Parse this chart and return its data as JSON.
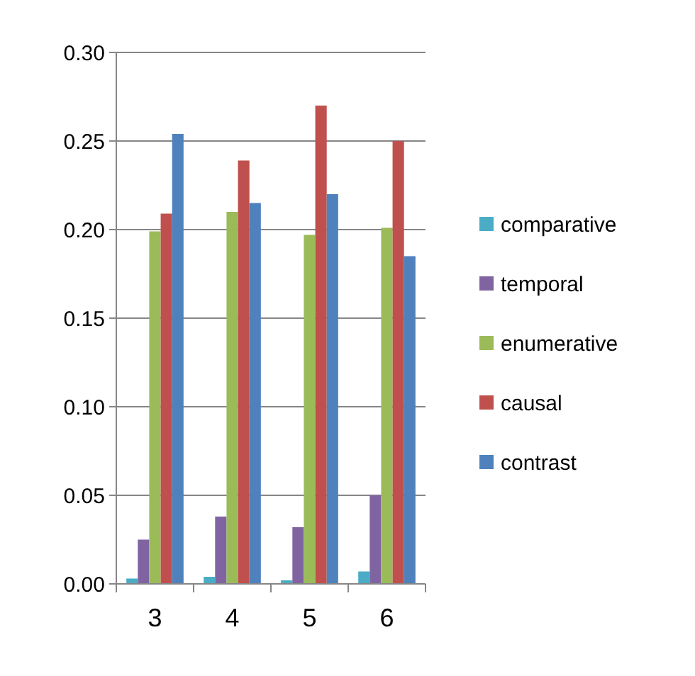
{
  "chart_data": {
    "type": "bar",
    "categories": [
      "3",
      "4",
      "5",
      "6"
    ],
    "series": [
      {
        "name": "comparative",
        "color": "#4bacc6",
        "values": [
          0.003,
          0.004,
          0.002,
          0.007
        ]
      },
      {
        "name": "temporal",
        "color": "#8064a2",
        "values": [
          0.025,
          0.038,
          0.032,
          0.05
        ]
      },
      {
        "name": "enumerative",
        "color": "#9bbb59",
        "values": [
          0.199,
          0.21,
          0.197,
          0.201
        ]
      },
      {
        "name": "causal",
        "color": "#c0504d",
        "values": [
          0.209,
          0.239,
          0.27,
          0.25
        ]
      },
      {
        "name": "contrast",
        "color": "#4f81bd",
        "values": [
          0.254,
          0.215,
          0.22,
          0.185
        ]
      }
    ],
    "ylim": [
      0,
      0.3
    ],
    "yticks": [
      {
        "value": 0,
        "label": "0.00"
      },
      {
        "value": 0.05,
        "label": "0.05"
      },
      {
        "value": 0.1,
        "label": "0.10"
      },
      {
        "value": 0.15,
        "label": "0.15"
      },
      {
        "value": 0.2,
        "label": "0.20"
      },
      {
        "value": 0.25,
        "label": "0.25"
      },
      {
        "value": 0.3,
        "label": "0.30"
      }
    ],
    "grid": "y",
    "legend": "right"
  }
}
